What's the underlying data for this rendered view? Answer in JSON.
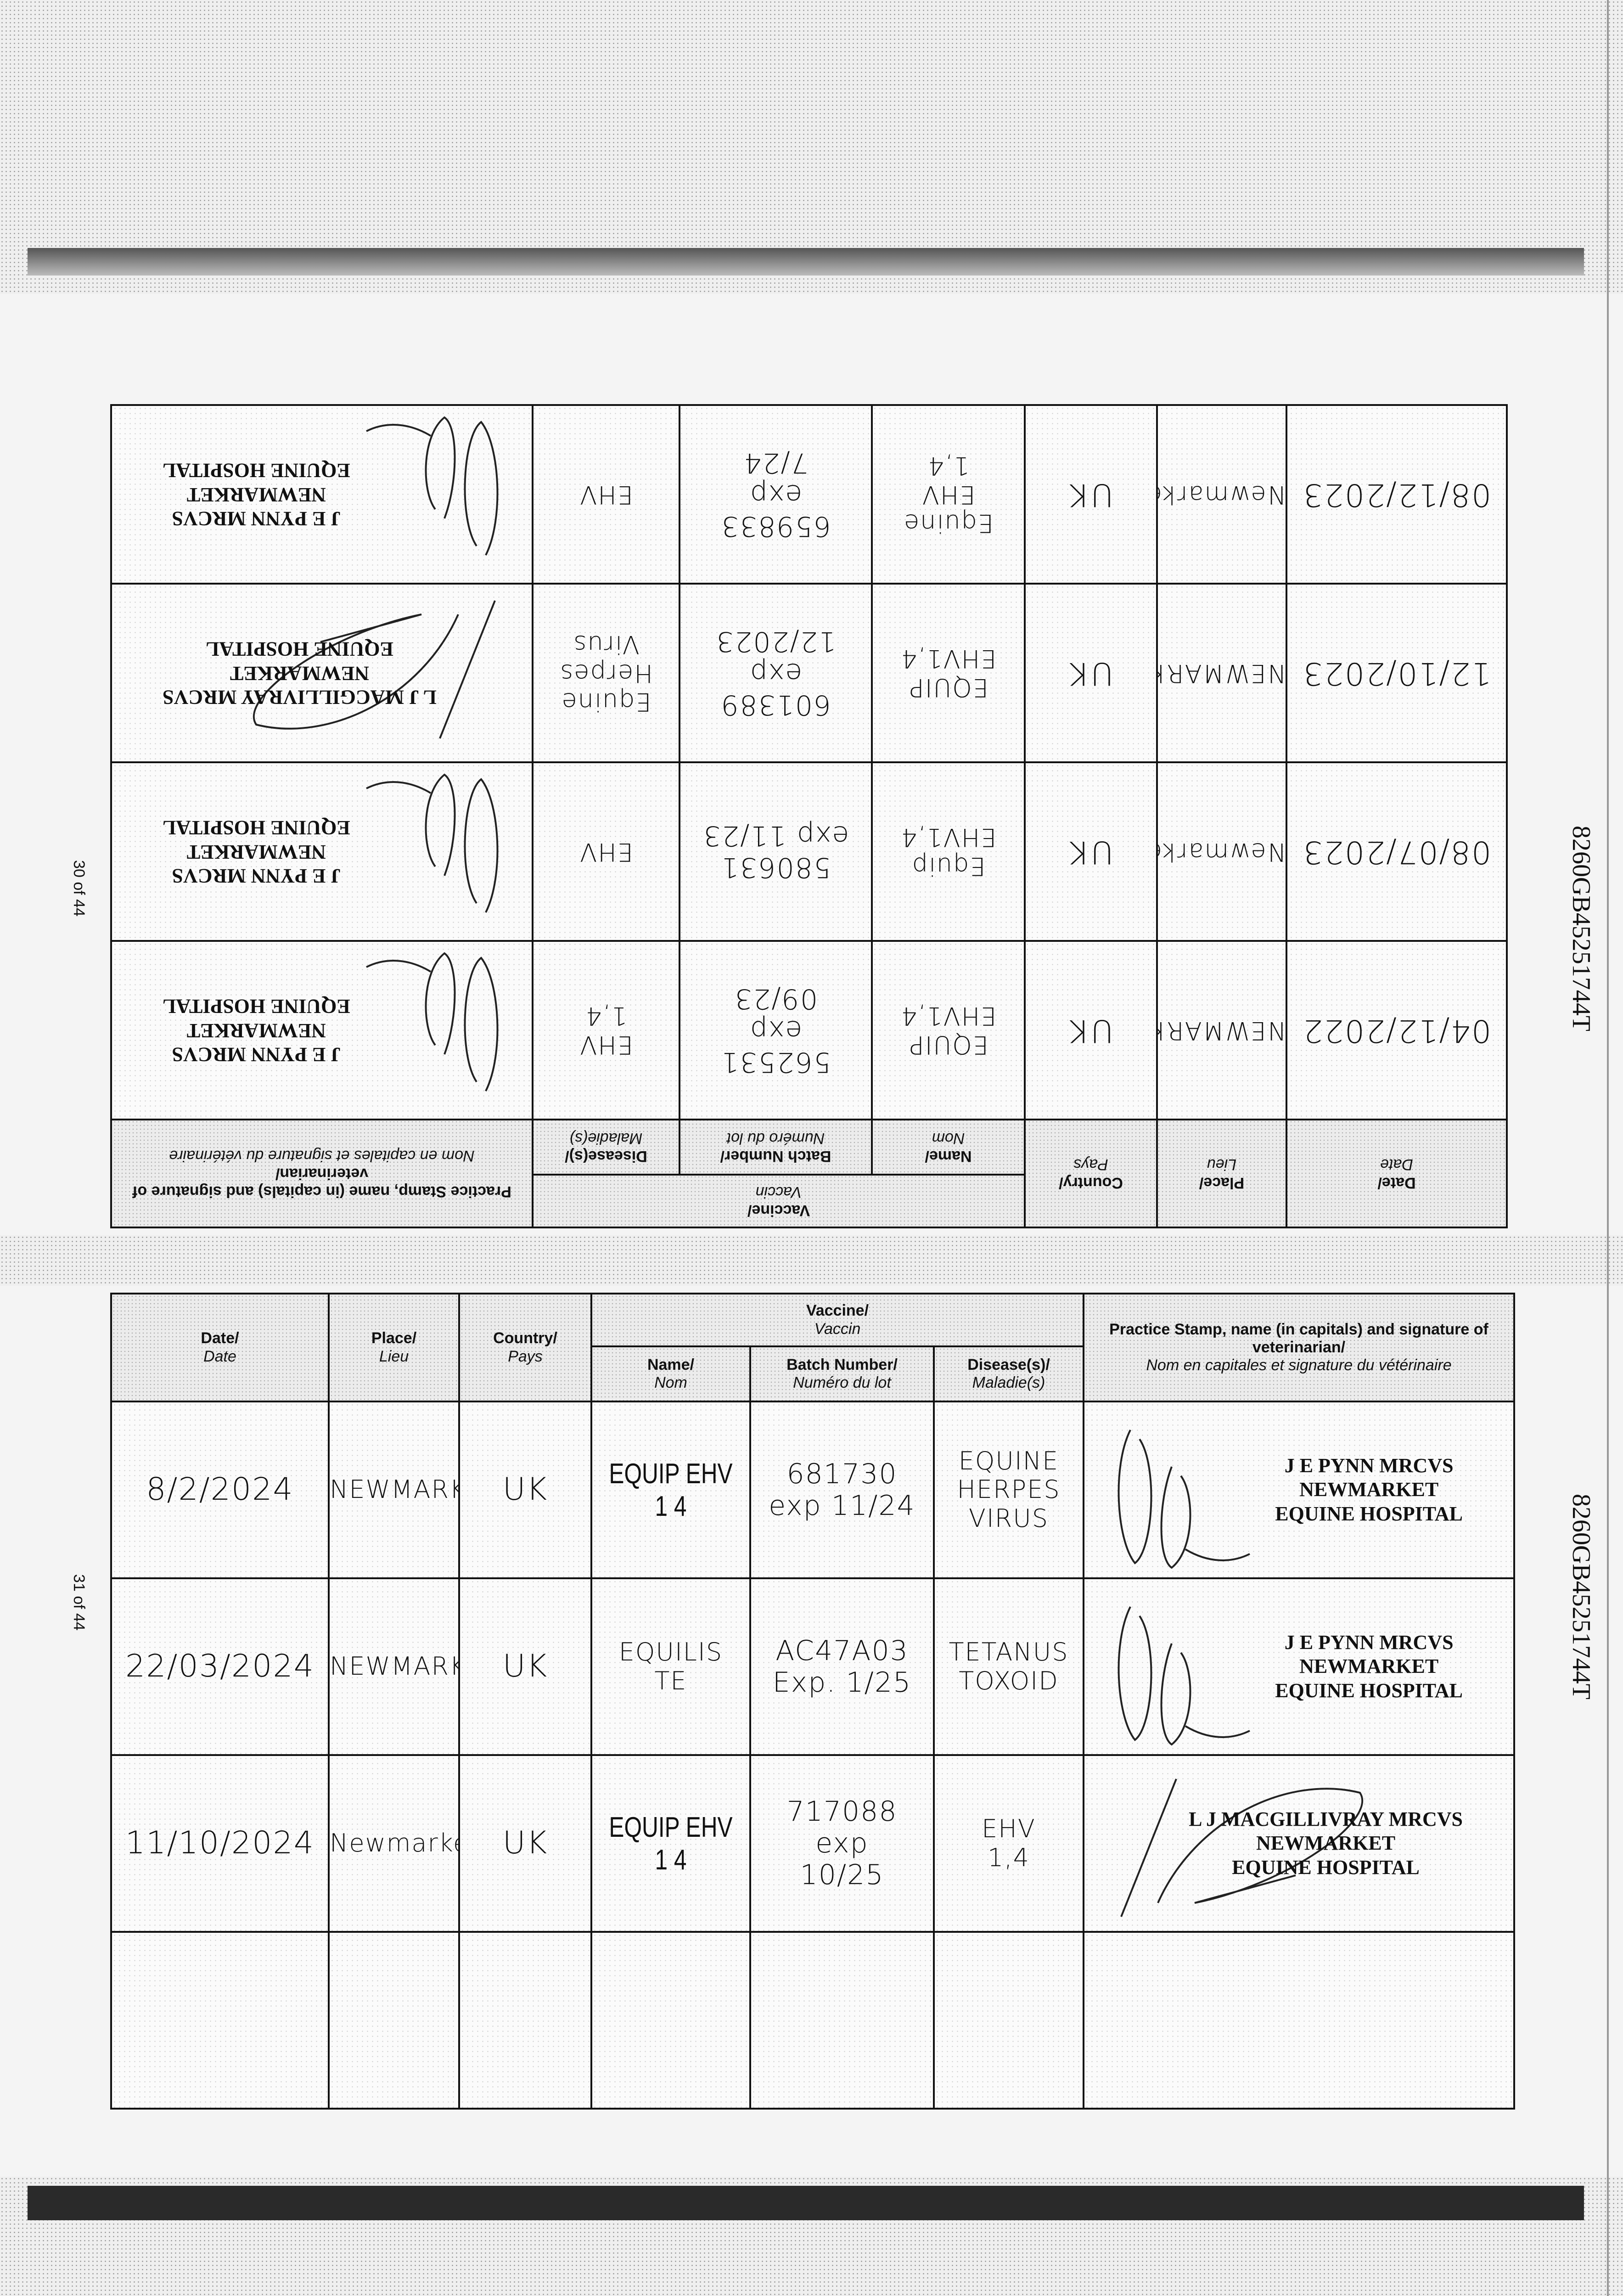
{
  "pages": {
    "upper": "30 of 44",
    "lower": "31 of 44"
  },
  "passport_number": "8260GB45251744T",
  "headers": {
    "date": "Date/",
    "date_fr": "Date",
    "place": "Place/",
    "place_fr": "Lieu",
    "country": "Country/",
    "country_fr": "Pays",
    "vaccine": "Vaccine/",
    "vaccine_fr": "Vaccin",
    "name": "Name/",
    "name_fr": "Nom",
    "batch": "Batch Number/",
    "batch_fr": "Numéro du lot",
    "disease": "Disease(s)/",
    "disease_fr": "Maladie(s)",
    "stamp": "Practice Stamp, name (in capitals) and signature of veterinarian/",
    "stamp_fr": "Nom en capitales et signature du vétérinaire"
  },
  "upper_rows": [
    {
      "date": "04/12/2022",
      "place": "NEWMARKET",
      "country": "UK",
      "name": "EQUIP EHV1,4",
      "batch": "562531\nexp\n09/23",
      "disease": "EHV\n1,4",
      "stamp": [
        "J E PYNN MRCVS",
        "NEWMARKET",
        "EQUINE HOSPITAL"
      ]
    },
    {
      "date": "08/07/2023",
      "place": "Newmarket",
      "country": "UK",
      "name": "Equip\nEHV1,4",
      "batch": "580631\nexp 11/23",
      "disease": "EHV",
      "stamp": [
        "J E PYNN MRCVS",
        "NEWMARKET",
        "EQUINE HOSPITAL"
      ]
    },
    {
      "date": "12/10/2023",
      "place": "NEWMARKET",
      "country": "UK",
      "name": "EQUIP EHV1,4",
      "batch": "601389\nexp\n12/2023",
      "disease": "Equine\nHerpes\nVirus",
      "stamp": [
        "L J MACGILLIVRAY MRCVS",
        "NEWMARKET",
        "EQUINE HOSPITAL"
      ]
    },
    {
      "date": "08/12/2023",
      "place": "Newmarket",
      "country": "UK",
      "name": "Equine\nEHV\n1,4",
      "batch": "659833\nexp\n7/24",
      "disease": "EHV",
      "stamp": [
        "J E PYNN MRCVS",
        "NEWMARKET",
        "EQUINE HOSPITAL"
      ]
    }
  ],
  "lower_rows": [
    {
      "date": "8/2/2024",
      "place": "NEWMARKET",
      "country": "UK",
      "name": "EQUIP EHV 1 4",
      "batch": "681730\nexp 11/24",
      "disease": "EQUINE\nHERPES\nVIRUS",
      "stamp": [
        "J E PYNN MRCVS",
        "NEWMARKET",
        "EQUINE HOSPITAL"
      ]
    },
    {
      "date": "22/03/2024",
      "place": "NEWMARKET",
      "country": "UK",
      "name": "EQUILIS\nTE",
      "batch": "AC47A03\nExp. 1/25",
      "disease": "TETANUS\nTOXOID",
      "stamp": [
        "J E PYNN MRCVS",
        "NEWMARKET",
        "EQUINE HOSPITAL"
      ]
    },
    {
      "date": "11/10/2024",
      "place": "Newmarket",
      "country": "UK",
      "name": "EQUIP EHV 1 4",
      "batch": "717088\nexp\n10/25",
      "disease": "EHV\n1,4",
      "stamp": [
        "L J MACGILLIVRAY MRCVS",
        "NEWMARKET",
        "EQUINE HOSPITAL"
      ]
    },
    {
      "date": "",
      "place": "",
      "country": "",
      "name": "",
      "batch": "",
      "disease": "",
      "stamp": []
    }
  ]
}
